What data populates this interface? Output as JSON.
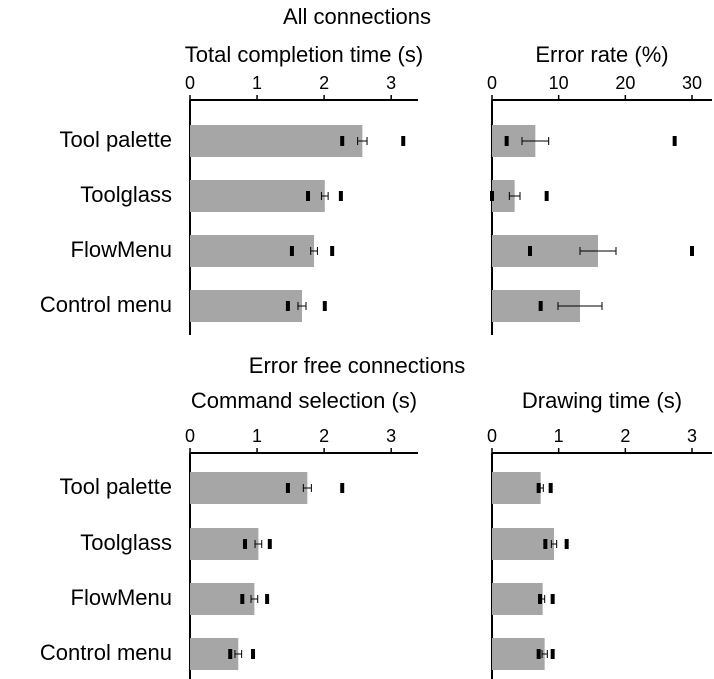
{
  "groups": [
    {
      "title": "All connections"
    },
    {
      "title": "Error free connections"
    }
  ],
  "chart_data": [
    {
      "type": "bar",
      "title": "Total completion time (s)",
      "orientation": "horizontal",
      "color": "#a6a6a6",
      "categories": [
        "Tool palette",
        "Toolglass",
        "FlowMenu",
        "Control menu"
      ],
      "values": [
        2.57,
        2.01,
        1.85,
        1.67
      ],
      "errors": [
        0.07,
        0.05,
        0.05,
        0.06
      ],
      "markers": [
        [
          2.27,
          3.18
        ],
        [
          1.76,
          2.25
        ],
        [
          1.52,
          2.12
        ],
        [
          1.46,
          2.01
        ]
      ],
      "xlim": [
        0,
        3.4
      ],
      "xticks": [
        0,
        1,
        2,
        3
      ]
    },
    {
      "type": "bar",
      "title": "Error rate (%)",
      "orientation": "horizontal",
      "color": "#a6a6a6",
      "values": [
        6.5,
        3.4,
        15.9,
        13.2
      ],
      "errors": [
        2,
        0.8,
        2.7,
        3.3
      ],
      "markers": [
        [
          2.2,
          27.4
        ],
        [
          0,
          8.2
        ],
        [
          5.7,
          30
        ],
        [
          7.3,
          null
        ]
      ],
      "xlim": [
        0,
        33
      ],
      "xticks": [
        0,
        10,
        20,
        30
      ]
    },
    {
      "type": "bar",
      "title": "Command selection (s)",
      "orientation": "horizontal",
      "color": "#a6a6a6",
      "categories": [
        "Tool palette",
        "Toolglass",
        "FlowMenu",
        "Control menu"
      ],
      "values": [
        1.75,
        1.02,
        0.96,
        0.72
      ],
      "errors": [
        0.06,
        0.05,
        0.05,
        0.05
      ],
      "markers": [
        [
          1.46,
          2.27
        ],
        [
          0.82,
          1.19
        ],
        [
          0.78,
          1.15
        ],
        [
          0.6,
          0.94
        ]
      ],
      "xlim": [
        0,
        3.4
      ],
      "xticks": [
        0,
        1,
        2,
        3
      ]
    },
    {
      "type": "bar",
      "title": "Drawing time (s)",
      "orientation": "horizontal",
      "color": "#a6a6a6",
      "values": [
        0.73,
        0.93,
        0.76,
        0.79
      ],
      "errors": [
        0.04,
        0.04,
        0.03,
        0.04
      ],
      "markers": [
        [
          0.7,
          0.88
        ],
        [
          0.8,
          1.12
        ],
        [
          0.72,
          0.91
        ],
        [
          0.7,
          0.91
        ]
      ],
      "xlim": [
        0,
        3.3
      ],
      "xticks": [
        0,
        1,
        2,
        3
      ]
    }
  ]
}
